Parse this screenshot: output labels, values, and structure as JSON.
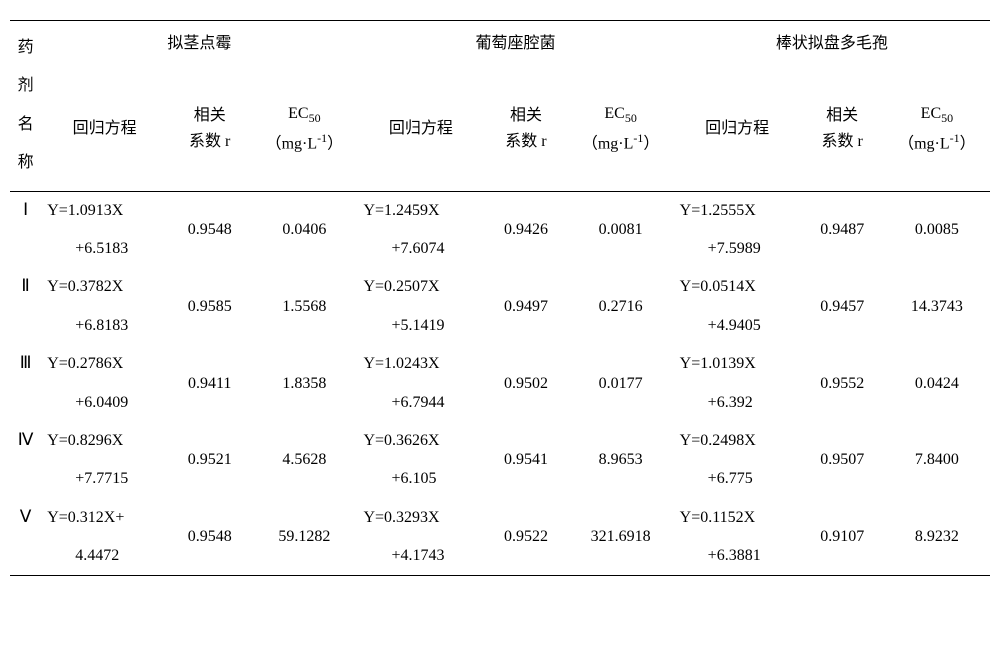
{
  "headers": {
    "agent": "药\n剂\n名\n称",
    "groups": [
      "拟茎点霉",
      "葡萄座腔菌",
      "棒状拟盘多毛孢"
    ],
    "sub": {
      "eq": "回归方程",
      "r_l1": "相关",
      "r_l2": "系数 r",
      "ec_label": "EC",
      "ec_sub": "50",
      "ec_unit_open": "（mg·L",
      "ec_unit_sup": "-1",
      "ec_unit_close": "）"
    }
  },
  "rows": [
    {
      "agent": "Ⅰ",
      "g1": {
        "eq1": "Y=1.0913X",
        "eq2": "+6.5183",
        "r": "0.9548",
        "ec": "0.0406"
      },
      "g2": {
        "eq1": "Y=1.2459X",
        "eq2": "+7.6074",
        "r": "0.9426",
        "ec": "0.0081"
      },
      "g3": {
        "eq1": "Y=1.2555X",
        "eq2": "+7.5989",
        "r": "0.9487",
        "ec": "0.0085"
      }
    },
    {
      "agent": "Ⅱ",
      "g1": {
        "eq1": "Y=0.3782X",
        "eq2": "+6.8183",
        "r": "0.9585",
        "ec": "1.5568"
      },
      "g2": {
        "eq1": "Y=0.2507X",
        "eq2": "+5.1419",
        "r": "0.9497",
        "ec": "0.2716"
      },
      "g3": {
        "eq1": "Y=0.0514X",
        "eq2": "+4.9405",
        "r": "0.9457",
        "ec": "14.3743"
      }
    },
    {
      "agent": "Ⅲ",
      "g1": {
        "eq1": "Y=0.2786X",
        "eq2": "+6.0409",
        "r": "0.9411",
        "ec": "1.8358"
      },
      "g2": {
        "eq1": "Y=1.0243X",
        "eq2": "+6.7944",
        "r": "0.9502",
        "ec": "0.0177"
      },
      "g3": {
        "eq1": "Y=1.0139X",
        "eq2": "+6.392",
        "r": "0.9552",
        "ec": "0.0424"
      }
    },
    {
      "agent": "Ⅳ",
      "g1": {
        "eq1": "Y=0.8296X",
        "eq2": "+7.7715",
        "r": "0.9521",
        "ec": "4.5628"
      },
      "g2": {
        "eq1": "Y=0.3626X",
        "eq2": "+6.105",
        "r": "0.9541",
        "ec": "8.9653"
      },
      "g3": {
        "eq1": "Y=0.2498X",
        "eq2": "+6.775",
        "r": "0.9507",
        "ec": "7.8400"
      }
    },
    {
      "agent": "Ⅴ",
      "g1": {
        "eq1": "Y=0.312X+",
        "eq2": "4.4472",
        "r": "0.9548",
        "ec": "59.1282"
      },
      "g2": {
        "eq1": "Y=0.3293X",
        "eq2": "+4.1743",
        "r": "0.9522",
        "ec": "321.6918"
      },
      "g3": {
        "eq1": "Y=0.1152X",
        "eq2": "+6.3881",
        "r": "0.9107",
        "ec": "8.9232"
      }
    }
  ]
}
